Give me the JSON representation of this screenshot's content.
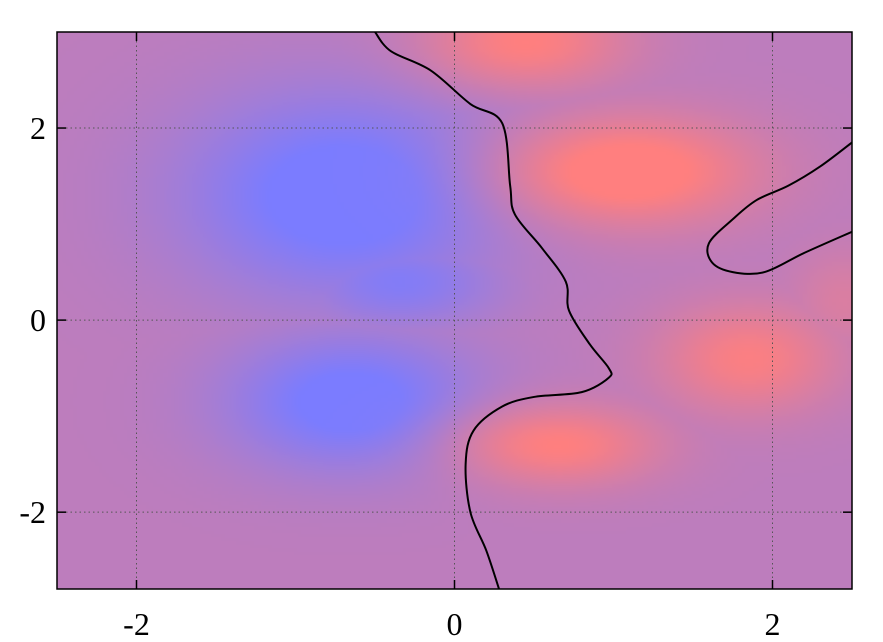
{
  "chart_data": {
    "type": "heatmap",
    "title": "",
    "xlabel": "",
    "ylabel": "",
    "xlim": [
      -2.5,
      2.5
    ],
    "ylim": [
      -2.8,
      3.0
    ],
    "x_ticks": [
      {
        "value": -2,
        "label": "-2"
      },
      {
        "value": 0,
        "label": "0"
      },
      {
        "value": 2,
        "label": "2"
      }
    ],
    "y_ticks": [
      {
        "value": -2,
        "label": "-2"
      },
      {
        "value": 0,
        "label": "0"
      },
      {
        "value": 2,
        "label": "2"
      }
    ],
    "grid": true,
    "grid_style": "dotted",
    "colors": {
      "background": "#bd7dbd",
      "low": "#7b7cff",
      "high": "#ff7f7f",
      "contour": "#000000",
      "grid": "#555555"
    },
    "low_regions": [
      {
        "x": -0.7,
        "y": 1.3,
        "sx": 0.7,
        "sy": 0.75,
        "strength": 1.0
      },
      {
        "x": -0.35,
        "y": 0.4,
        "sx": 0.45,
        "sy": 0.35,
        "strength": 0.7
      },
      {
        "x": -0.65,
        "y": -0.85,
        "sx": 0.55,
        "sy": 0.5,
        "strength": 0.95
      }
    ],
    "high_regions": [
      {
        "x": 0.45,
        "y": 2.9,
        "sx": 0.45,
        "sy": 0.35,
        "strength": 0.8
      },
      {
        "x": 1.1,
        "y": 1.55,
        "sx": 0.55,
        "sy": 0.4,
        "strength": 1.0
      },
      {
        "x": 1.85,
        "y": -0.4,
        "sx": 0.4,
        "sy": 0.4,
        "strength": 0.75
      },
      {
        "x": 0.65,
        "y": -1.3,
        "sx": 0.45,
        "sy": 0.3,
        "strength": 0.8
      },
      {
        "x": 2.45,
        "y": 0.2,
        "sx": 0.25,
        "sy": 0.4,
        "strength": 0.35
      }
    ],
    "contours": [
      {
        "name": "",
        "points": [
          [
            -0.5,
            3.0
          ],
          [
            -0.4,
            2.8
          ],
          [
            -0.15,
            2.6
          ],
          [
            0.1,
            2.25
          ],
          [
            0.3,
            2.05
          ],
          [
            0.35,
            1.4
          ],
          [
            0.38,
            1.1
          ],
          [
            0.55,
            0.75
          ],
          [
            0.7,
            0.4
          ],
          [
            0.72,
            0.1
          ],
          [
            0.85,
            -0.25
          ],
          [
            0.97,
            -0.5
          ],
          [
            0.97,
            -0.6
          ],
          [
            0.8,
            -0.75
          ],
          [
            0.5,
            -0.8
          ],
          [
            0.3,
            -0.9
          ],
          [
            0.12,
            -1.15
          ],
          [
            0.07,
            -1.5
          ],
          [
            0.1,
            -2.0
          ],
          [
            0.2,
            -2.4
          ],
          [
            0.28,
            -2.8
          ]
        ]
      },
      {
        "name": "",
        "points": [
          [
            2.5,
            1.85
          ],
          [
            2.3,
            1.6
          ],
          [
            2.1,
            1.4
          ],
          [
            1.9,
            1.25
          ],
          [
            1.75,
            1.05
          ],
          [
            1.6,
            0.8
          ],
          [
            1.62,
            0.6
          ],
          [
            1.75,
            0.5
          ],
          [
            1.95,
            0.5
          ],
          [
            2.2,
            0.7
          ],
          [
            2.5,
            0.92
          ]
        ]
      }
    ]
  }
}
